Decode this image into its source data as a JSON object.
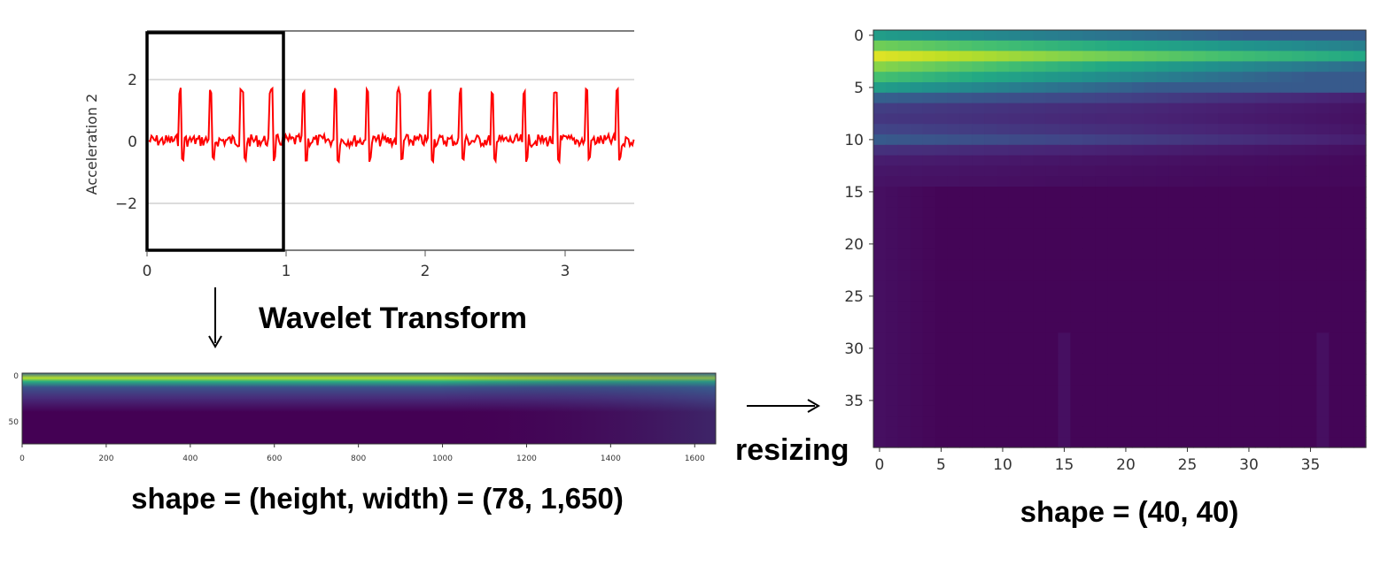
{
  "signal_plot": {
    "ylabel": "Acceleration 2",
    "yticks": [
      "2",
      "0",
      "−2"
    ],
    "xticks": [
      "0",
      "1",
      "2",
      "3"
    ],
    "line_color": "#ff0000",
    "window": {
      "x_start": 0,
      "x_end": 1
    }
  },
  "wavelet_label": "Wavelet Transform",
  "scalogram": {
    "yticks": [
      "0",
      "50"
    ],
    "xticks": [
      "0",
      "200",
      "400",
      "600",
      "800",
      "1000",
      "1200",
      "1400",
      "1600"
    ],
    "caption": "shape = (height, width) = (78, 1,650)"
  },
  "resizing_label": "resizing",
  "resized": {
    "yticks": [
      "0",
      "5",
      "10",
      "15",
      "20",
      "25",
      "30",
      "35"
    ],
    "xticks": [
      "0",
      "5",
      "10",
      "15",
      "20",
      "25",
      "30",
      "35"
    ],
    "caption": "shape = (40, 40)"
  },
  "colormap": {
    "name": "viridis",
    "low": "#440154",
    "high": "#fde725"
  }
}
